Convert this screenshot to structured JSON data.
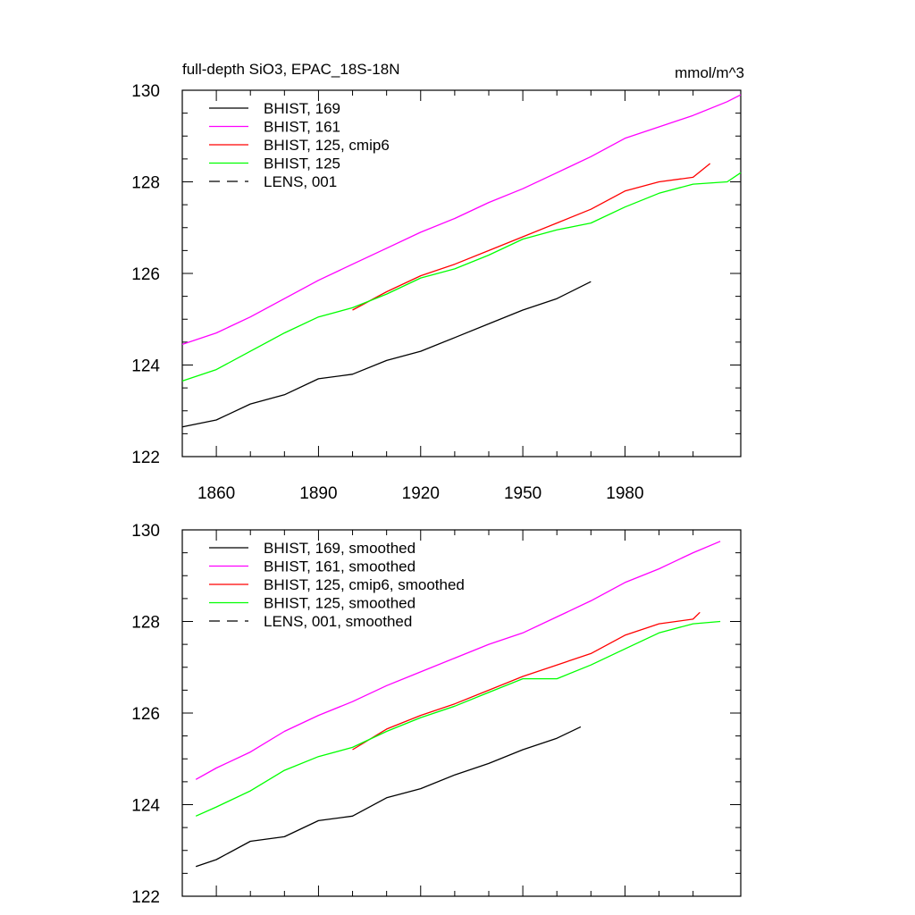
{
  "colors": {
    "black": "#000000",
    "magenta": "#ff00ff",
    "red": "#ff0000",
    "green": "#00ff00"
  },
  "chart_data": [
    {
      "type": "line",
      "title": "full-depth SiO3, EPAC_18S-18N",
      "units": "mmol/m^3",
      "xlabel": "",
      "ylabel": "",
      "xlim": [
        1850,
        2014
      ],
      "ylim": [
        122,
        130
      ],
      "yticks": [
        122,
        124,
        126,
        128,
        130
      ],
      "ytick_labels": [
        "122",
        "124",
        "126",
        "128",
        "130"
      ],
      "xticks": [
        1860,
        1890,
        1920,
        1950,
        1980
      ],
      "xtick_labels": [
        "1860",
        "1890",
        "1920",
        "1950",
        "1980"
      ],
      "legend": "top-left",
      "series": [
        {
          "name": "BHIST, 169",
          "color": "#000000",
          "dash": "solid",
          "x": [
            1850,
            1860,
            1870,
            1880,
            1890,
            1900,
            1910,
            1920,
            1930,
            1940,
            1950,
            1960,
            1970
          ],
          "values": [
            122.65,
            122.8,
            123.15,
            123.35,
            123.7,
            123.8,
            124.1,
            124.3,
            124.6,
            124.9,
            125.2,
            125.45,
            125.82
          ]
        },
        {
          "name": "BHIST, 161",
          "color": "#ff00ff",
          "dash": "solid",
          "x": [
            1850,
            1860,
            1870,
            1880,
            1890,
            1900,
            1910,
            1920,
            1930,
            1940,
            1950,
            1960,
            1970,
            1980,
            1990,
            2000,
            2010,
            2014
          ],
          "values": [
            124.45,
            124.7,
            125.05,
            125.45,
            125.85,
            126.2,
            126.55,
            126.9,
            127.2,
            127.55,
            127.85,
            128.2,
            128.55,
            128.95,
            129.2,
            129.45,
            129.75,
            129.9
          ]
        },
        {
          "name": "BHIST, 125, cmip6",
          "color": "#ff0000",
          "dash": "solid",
          "x": [
            1900,
            1910,
            1920,
            1930,
            1940,
            1950,
            1960,
            1970,
            1980,
            1990,
            2000,
            2005
          ],
          "values": [
            125.2,
            125.6,
            125.95,
            126.2,
            126.5,
            126.8,
            127.1,
            127.4,
            127.8,
            128.0,
            128.1,
            128.4
          ]
        },
        {
          "name": "BHIST, 125",
          "color": "#00ff00",
          "dash": "solid",
          "x": [
            1850,
            1860,
            1870,
            1880,
            1890,
            1900,
            1910,
            1920,
            1930,
            1940,
            1950,
            1960,
            1970,
            1980,
            1990,
            2000,
            2010,
            2014
          ],
          "values": [
            123.65,
            123.9,
            124.3,
            124.7,
            125.05,
            125.25,
            125.55,
            125.9,
            126.1,
            126.4,
            126.75,
            126.95,
            127.1,
            127.45,
            127.75,
            127.95,
            128.0,
            128.2
          ]
        },
        {
          "name": "LENS, 001",
          "color": "#000000",
          "dash": "dashed",
          "x": [],
          "values": []
        }
      ]
    },
    {
      "type": "line",
      "title": "",
      "xlim": [
        1850,
        2014
      ],
      "ylim": [
        122,
        130
      ],
      "yticks": [
        122,
        124,
        126,
        128,
        130
      ],
      "ytick_labels": [
        "122",
        "124",
        "126",
        "128",
        "130"
      ],
      "xticks": [
        1860,
        1890,
        1920,
        1950,
        1980
      ],
      "xtick_labels": [],
      "legend": "top-left",
      "series": [
        {
          "name": "BHIST, 169, smoothed",
          "color": "#000000",
          "dash": "solid",
          "x": [
            1854,
            1860,
            1870,
            1880,
            1890,
            1900,
            1910,
            1920,
            1930,
            1940,
            1950,
            1960,
            1967
          ],
          "values": [
            122.65,
            122.8,
            123.2,
            123.3,
            123.65,
            123.75,
            124.15,
            124.35,
            124.65,
            124.9,
            125.2,
            125.45,
            125.7
          ]
        },
        {
          "name": "BHIST, 161, smoothed",
          "color": "#ff00ff",
          "dash": "solid",
          "x": [
            1854,
            1860,
            1870,
            1880,
            1890,
            1900,
            1910,
            1920,
            1930,
            1940,
            1950,
            1960,
            1970,
            1980,
            1990,
            2000,
            2008
          ],
          "values": [
            124.55,
            124.8,
            125.15,
            125.6,
            125.95,
            126.25,
            126.6,
            126.9,
            127.2,
            127.5,
            127.75,
            128.1,
            128.45,
            128.85,
            129.15,
            129.5,
            129.75
          ]
        },
        {
          "name": "BHIST, 125, cmip6, smoothed",
          "color": "#ff0000",
          "dash": "solid",
          "x": [
            1900,
            1910,
            1920,
            1930,
            1940,
            1950,
            1960,
            1970,
            1980,
            1990,
            2000,
            2002
          ],
          "values": [
            125.2,
            125.65,
            125.95,
            126.2,
            126.5,
            126.8,
            127.05,
            127.3,
            127.7,
            127.95,
            128.05,
            128.2
          ]
        },
        {
          "name": "BHIST, 125, smoothed",
          "color": "#00ff00",
          "dash": "solid",
          "x": [
            1854,
            1860,
            1870,
            1880,
            1890,
            1900,
            1910,
            1920,
            1930,
            1940,
            1950,
            1960,
            1970,
            1980,
            1990,
            2000,
            2008
          ],
          "values": [
            123.75,
            123.95,
            124.3,
            124.75,
            125.05,
            125.25,
            125.6,
            125.9,
            126.15,
            126.45,
            126.75,
            126.75,
            127.05,
            127.4,
            127.75,
            127.95,
            128.0
          ]
        },
        {
          "name": "LENS, 001, smoothed",
          "color": "#000000",
          "dash": "dashed",
          "x": [],
          "values": []
        }
      ]
    }
  ]
}
